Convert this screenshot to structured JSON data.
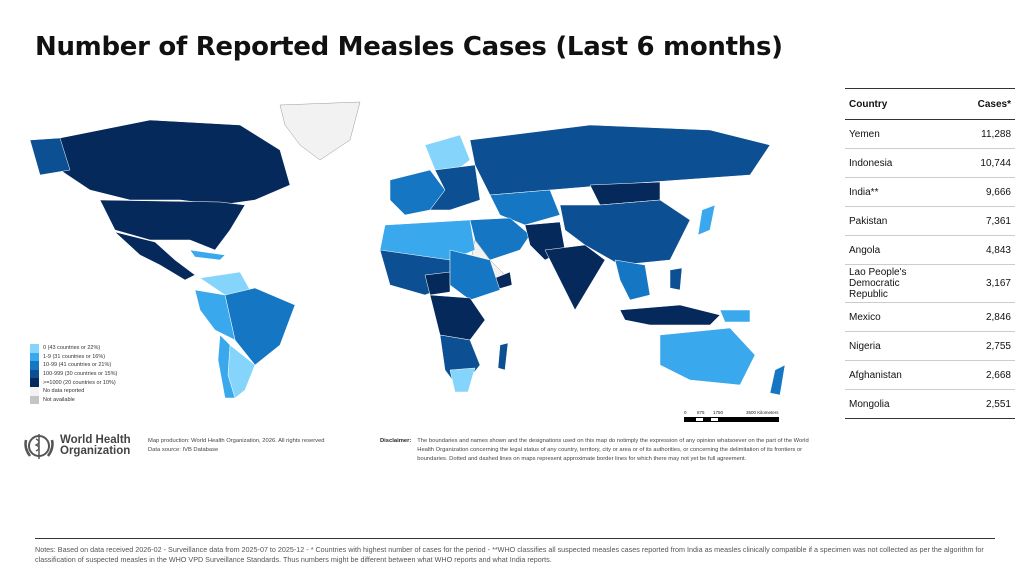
{
  "title": "Number of Reported Measles Cases (Last 6 months)",
  "colors": {
    "c0": "#85d4fb",
    "c1": "#3aa8ec",
    "c2": "#1577c4",
    "c3": "#0c4f92",
    "c4": "#06295c",
    "nodata": "#f2f2f2",
    "na": "#c4c4c4"
  },
  "legend": [
    {
      "label": "0 (43 countries or 22%)",
      "color": "#85d4fb"
    },
    {
      "label": "1-9 (31 countries or 16%)",
      "color": "#3aa8ec"
    },
    {
      "label": "10-99 (41 countries or 21%)",
      "color": "#1577c4"
    },
    {
      "label": "100-999 (30 countries or 15%)",
      "color": "#0c4f92"
    },
    {
      "label": ">=1000 (20 countries or 10%)",
      "color": "#06295c"
    },
    {
      "label": "No data reported",
      "color": "#f2f2f2"
    },
    {
      "label": "Not available",
      "color": "#c4c4c4"
    }
  ],
  "scale": {
    "ticks": [
      "0",
      "875",
      "1750",
      "3500 Kilometers"
    ]
  },
  "who": {
    "name_line1": "World Health",
    "name_line2": "Organization"
  },
  "map_info": {
    "production": "Map production: World Health Organization, 2026. All rights reserved",
    "source": "Data source: IVB Database"
  },
  "disclaimer": {
    "label": "Disclaimer:",
    "text": "The boundaries and names shown and the designations used on this map do notimply the expression of any opinion whatsoever on the part of the World Health Organization concerning the legal status of any country, territory, city or area or of its authorities, or concerning the delimitation of its frontiers or boundaries. Dotted and dashed lines on maps represent approximate border lines for which there may not yet be full agreement."
  },
  "table": {
    "headers": {
      "country": "Country",
      "cases": "Cases*"
    },
    "rows": [
      {
        "country": "Yemen",
        "cases": "11,288"
      },
      {
        "country": "Indonesia",
        "cases": "10,744"
      },
      {
        "country": "India**",
        "cases": "9,666"
      },
      {
        "country": "Pakistan",
        "cases": "7,361"
      },
      {
        "country": "Angola",
        "cases": "4,843"
      },
      {
        "country": "Lao People's Democratic Republic",
        "cases": "3,167"
      },
      {
        "country": "Mexico",
        "cases": "2,846"
      },
      {
        "country": "Nigeria",
        "cases": "2,755"
      },
      {
        "country": "Afghanistan",
        "cases": "2,668"
      },
      {
        "country": "Mongolia",
        "cases": "2,551"
      }
    ]
  },
  "notes": "Notes: Based on data received 2026-02 - Surveillance data from 2025-07 to 2025-12 - * Countries with highest number of cases for the period - **WHO classifies all suspected measles cases reported from India as measles clinically compatible if a specimen was not collected as per the algorithm for classification of suspected measles in the WHO VPD Surveillance Standards.  Thus numbers might be different between what WHO reports and what India reports."
}
